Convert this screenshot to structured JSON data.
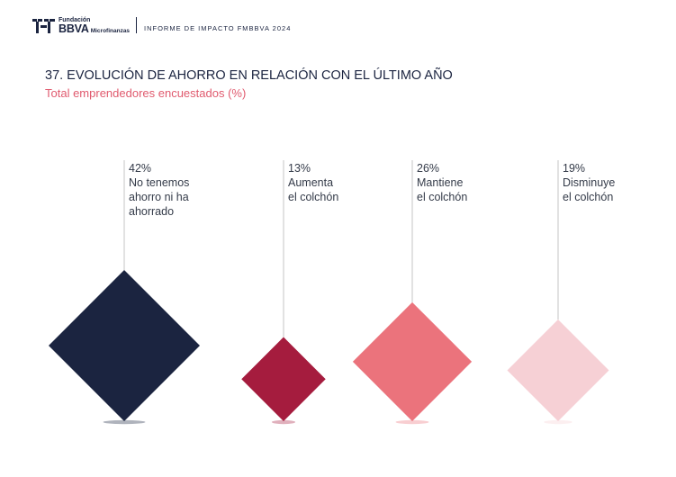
{
  "header": {
    "logo_foundation": "Fundación",
    "logo_bbva": "BBVA",
    "logo_micro": "Microfinanzas",
    "report_label": "INFORME DE IMPACTO FMBBVA 2024"
  },
  "title": "37. EVOLUCIÓN DE AHORRO EN RELACIÓN CON EL ÚLTIMO AÑO",
  "subtitle": "Total emprendedores encuestados (%)",
  "chart_data": {
    "type": "diamond",
    "title": "37. EVOLUCIÓN DE AHORRO EN RELACIÓN CON EL ÚLTIMO AÑO",
    "subtitle": "Total emprendedores encuestados (%)",
    "unit": "%",
    "items": [
      {
        "value": 42,
        "value_label": "42%",
        "label_lines": [
          "No tenemos",
          "ahorro ni ha",
          "ahorrado"
        ],
        "color": "#1b2440"
      },
      {
        "value": 13,
        "value_label": "13%",
        "label_lines": [
          "Aumenta",
          "el colchón"
        ],
        "color": "#a51c3e"
      },
      {
        "value": 26,
        "value_label": "26%",
        "label_lines": [
          "Mantiene",
          "el colchón"
        ],
        "color": "#eb737c"
      },
      {
        "value": 19,
        "value_label": "19%",
        "label_lines": [
          "Disminuye",
          "el colchón"
        ],
        "color": "#f6d0d5"
      }
    ]
  }
}
